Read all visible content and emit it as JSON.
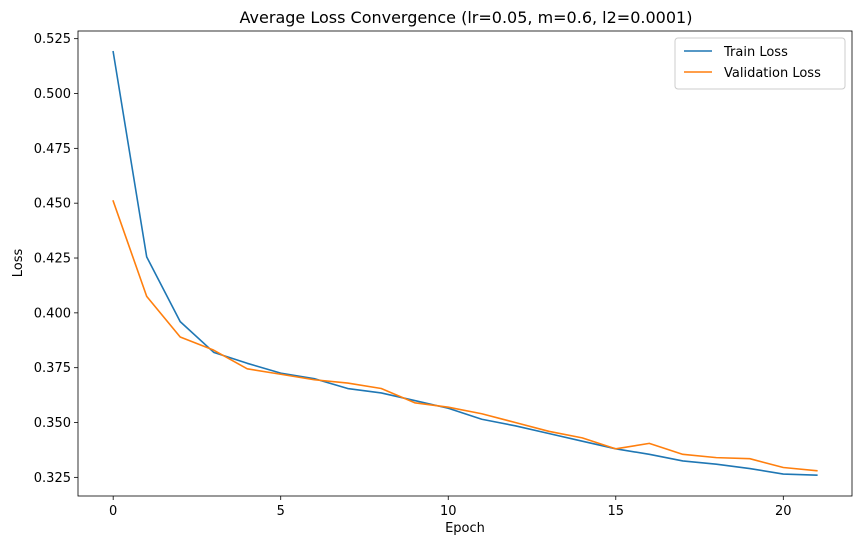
{
  "chart_data": {
    "type": "line",
    "title": "Average Loss Convergence (lr=0.05, m=0.6, l2=0.0001)",
    "xlabel": "Epoch",
    "ylabel": "Loss",
    "xlim": [
      -1.05,
      22.05
    ],
    "ylim": [
      0.3165,
      0.5285
    ],
    "xticks": [
      0,
      5,
      10,
      15,
      20
    ],
    "yticks": [
      0.325,
      0.35,
      0.375,
      0.4,
      0.425,
      0.45,
      0.475,
      0.5,
      0.525
    ],
    "xtick_labels": [
      "0",
      "5",
      "10",
      "15",
      "20"
    ],
    "ytick_labels": [
      "0.325",
      "0.350",
      "0.375",
      "0.400",
      "0.425",
      "0.450",
      "0.475",
      "0.500",
      "0.525"
    ],
    "grid": false,
    "legend_position": "top-right",
    "x": [
      0,
      1,
      2,
      3,
      4,
      5,
      6,
      7,
      8,
      9,
      10,
      11,
      12,
      13,
      14,
      15,
      16,
      17,
      18,
      19,
      20,
      21
    ],
    "series": [
      {
        "name": "Train Loss",
        "color": "#1f77b4",
        "values": [
          0.519,
          0.4255,
          0.396,
          0.382,
          0.377,
          0.3725,
          0.37,
          0.3655,
          0.3635,
          0.36,
          0.3565,
          0.3515,
          0.3485,
          0.345,
          0.3415,
          0.338,
          0.3355,
          0.3325,
          0.331,
          0.329,
          0.3265,
          0.326
        ]
      },
      {
        "name": "Validation Loss",
        "color": "#ff7f0e",
        "values": [
          0.451,
          0.4075,
          0.389,
          0.383,
          0.3745,
          0.372,
          0.3695,
          0.368,
          0.3655,
          0.359,
          0.357,
          0.354,
          0.35,
          0.346,
          0.343,
          0.338,
          0.3405,
          0.3355,
          0.334,
          0.3335,
          0.3295,
          0.328
        ]
      }
    ]
  }
}
